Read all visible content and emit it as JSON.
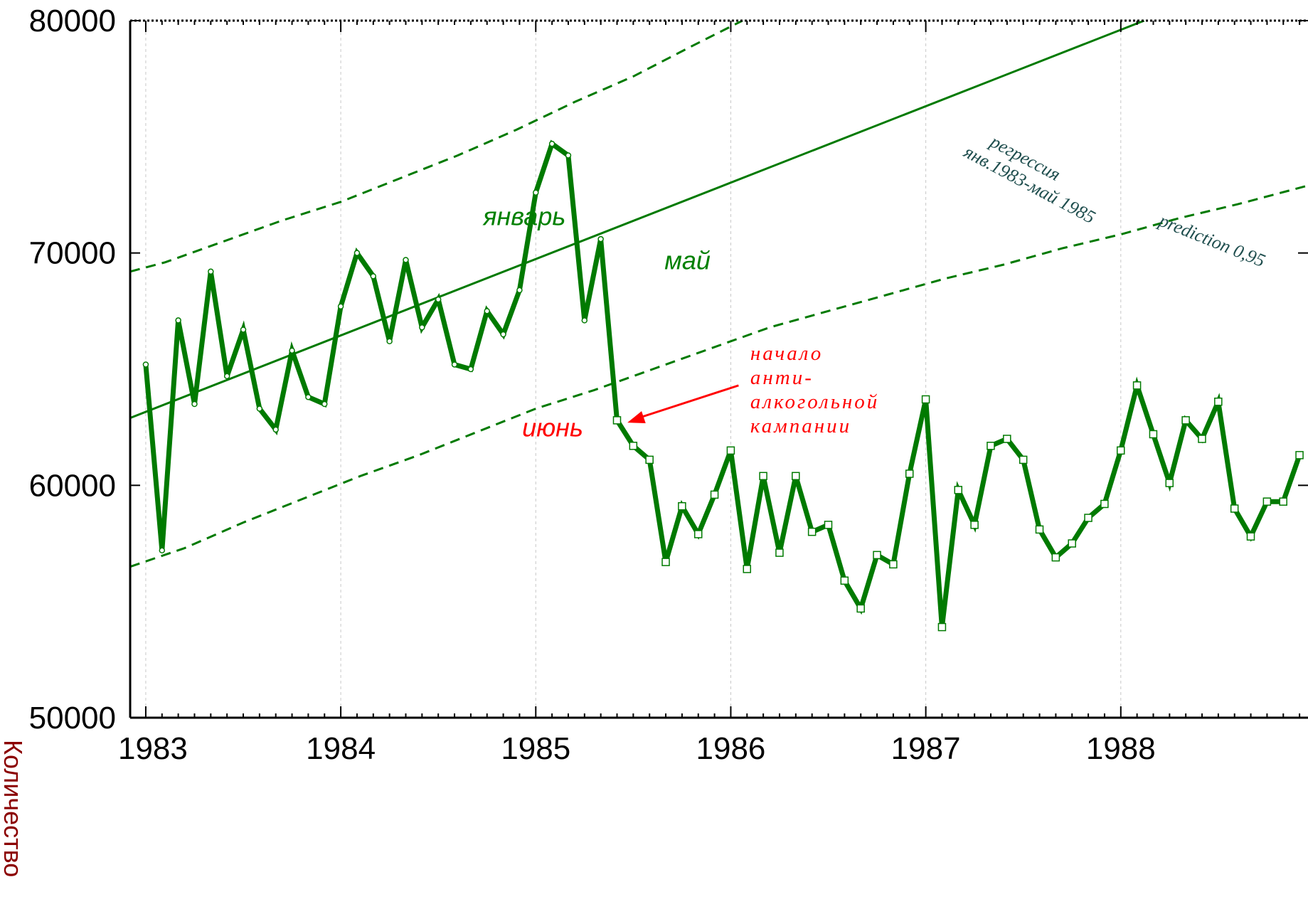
{
  "chart_data": {
    "type": "line",
    "title": "",
    "xlabel": "",
    "ylabel": "Количество",
    "xlim": [
      1982.92,
      1988.96
    ],
    "ylim": [
      50000,
      80000
    ],
    "grid": "vertical",
    "x_ticks": [
      {
        "value": 1983,
        "label": "1983"
      },
      {
        "value": 1984,
        "label": "1984"
      },
      {
        "value": 1985,
        "label": "1985"
      },
      {
        "value": 1986,
        "label": "1986"
      },
      {
        "value": 1987,
        "label": "1987"
      },
      {
        "value": 1988,
        "label": "1988"
      }
    ],
    "y_ticks": [
      {
        "value": 50000,
        "label": "50000"
      },
      {
        "value": 60000,
        "label": "60000"
      },
      {
        "value": 70000,
        "label": "70000"
      },
      {
        "value": 80000,
        "label": "80000"
      }
    ],
    "series": [
      {
        "role": "observed",
        "color": "#007a00",
        "x_start": 1983.0,
        "step": 0.08333,
        "pre_campaign_count": 29,
        "values": [
          65200,
          57200,
          67100,
          63500,
          69200,
          64700,
          66700,
          63300,
          62400,
          65800,
          63800,
          63500,
          67700,
          70000,
          69000,
          66200,
          69700,
          66800,
          68000,
          65200,
          65000,
          67500,
          66500,
          68400,
          72600,
          74700,
          74200,
          67100,
          70600,
          62800,
          61700,
          61100,
          56700,
          59100,
          57900,
          59600,
          61500,
          56400,
          60400,
          57100,
          60400,
          58000,
          58300,
          55900,
          54700,
          57000,
          56600,
          60500,
          63700,
          53900,
          59800,
          58300,
          61700,
          62000,
          61100,
          58100,
          56900,
          57500,
          58600,
          59200,
          61500,
          64300,
          62200,
          60100,
          62800,
          62000,
          63600,
          59000,
          57800,
          59300,
          59300,
          61300
        ]
      },
      {
        "role": "regression",
        "color": "#007a00",
        "points": [
          [
            1982.92,
            62900
          ],
          [
            1988.12,
            80000
          ]
        ]
      },
      {
        "role": "prediction-upper",
        "color": "#007a00",
        "points": [
          [
            1982.92,
            69200
          ],
          [
            1983.1,
            69600
          ],
          [
            1983.4,
            70500
          ],
          [
            1983.7,
            71400
          ],
          [
            1984.0,
            72200
          ],
          [
            1984.3,
            73200
          ],
          [
            1984.6,
            74200
          ],
          [
            1984.9,
            75300
          ],
          [
            1985.2,
            76500
          ],
          [
            1985.5,
            77600
          ],
          [
            1985.8,
            78900
          ],
          [
            1986.06,
            80000
          ]
        ]
      },
      {
        "role": "prediction-lower",
        "color": "#007a00",
        "points": [
          [
            1982.92,
            56500
          ],
          [
            1983.2,
            57300
          ],
          [
            1983.5,
            58400
          ],
          [
            1983.8,
            59400
          ],
          [
            1984.1,
            60400
          ],
          [
            1984.4,
            61300
          ],
          [
            1984.7,
            62300
          ],
          [
            1985.0,
            63300
          ],
          [
            1985.3,
            64100
          ],
          [
            1985.6,
            65000
          ],
          [
            1985.9,
            65900
          ],
          [
            1986.2,
            66800
          ],
          [
            1986.5,
            67500
          ],
          [
            1986.8,
            68200
          ],
          [
            1987.1,
            68900
          ],
          [
            1987.4,
            69500
          ],
          [
            1987.7,
            70200
          ],
          [
            1988.0,
            70800
          ],
          [
            1988.3,
            71500
          ],
          [
            1988.6,
            72100
          ],
          [
            1988.96,
            72900
          ]
        ]
      }
    ],
    "annotations": [
      {
        "id": "january",
        "text": "январь",
        "x": 1984.73,
        "y": 71200
      },
      {
        "id": "may",
        "text": "май",
        "x": 1985.66,
        "y": 69300
      },
      {
        "id": "june",
        "text": "июнь",
        "x": 1984.93,
        "y": 62100
      },
      {
        "id": "campaign",
        "lines": [
          "начало",
          "анти-",
          "алкогольной",
          "кампании"
        ],
        "x": 1986.1,
        "y": 65400
      },
      {
        "id": "regression",
        "lines": [
          "регрессия",
          "янв.1983-май 1985"
        ],
        "x": 1987.24,
        "y": 75000
      },
      {
        "id": "prediction",
        "text": "prediction 0,95",
        "x": 1988.19,
        "y": 71200
      }
    ],
    "arrow": {
      "from": [
        1986.04,
        64300
      ],
      "to": [
        1985.47,
        62700
      ],
      "color": "#ff0000"
    }
  }
}
